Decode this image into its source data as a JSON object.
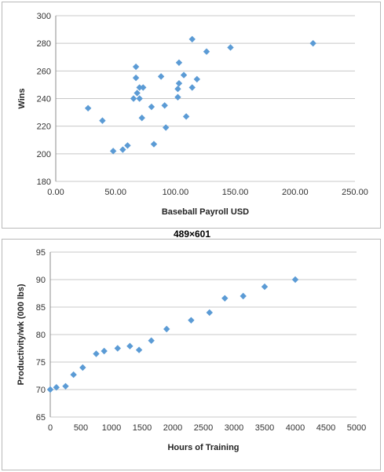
{
  "chart_data": [
    {
      "type": "scatter",
      "title": "",
      "xlabel": "Baseball Payroll USD",
      "ylabel": "Wins",
      "xlim": [
        0,
        250
      ],
      "ylim": [
        180,
        300
      ],
      "x_ticks": [
        "0.00",
        "50.00",
        "100.00",
        "150.00",
        "200.00",
        "250.00"
      ],
      "y_ticks": [
        "180",
        "200",
        "220",
        "240",
        "260",
        "280",
        "300"
      ],
      "grid": true,
      "color": "#5b9bd5",
      "points": [
        [
          27,
          233
        ],
        [
          39,
          224
        ],
        [
          48,
          202
        ],
        [
          56,
          203
        ],
        [
          60,
          206
        ],
        [
          65,
          240
        ],
        [
          67,
          263
        ],
        [
          67,
          255
        ],
        [
          68,
          244
        ],
        [
          70,
          248
        ],
        [
          70,
          240
        ],
        [
          72,
          226
        ],
        [
          73,
          248
        ],
        [
          80,
          234
        ],
        [
          82,
          207
        ],
        [
          88,
          256
        ],
        [
          91,
          235
        ],
        [
          92,
          219
        ],
        [
          102,
          247
        ],
        [
          102,
          241
        ],
        [
          103,
          266
        ],
        [
          103,
          251
        ],
        [
          107,
          257
        ],
        [
          109,
          227
        ],
        [
          114,
          283
        ],
        [
          114,
          248
        ],
        [
          118,
          254
        ],
        [
          126,
          274
        ],
        [
          146,
          277
        ],
        [
          215,
          280
        ]
      ]
    },
    {
      "type": "scatter",
      "title": "",
      "xlabel": "Hours of Training",
      "ylabel": "Productivity/wk (000 lbs)",
      "xlim": [
        0,
        5000
      ],
      "ylim": [
        65,
        95
      ],
      "x_ticks": [
        "0",
        "500",
        "1000",
        "1500",
        "2000",
        "2500",
        "3000",
        "3500",
        "4000",
        "4500",
        "5000"
      ],
      "y_ticks": [
        "65",
        "70",
        "75",
        "80",
        "85",
        "90",
        "95"
      ],
      "grid": true,
      "color": "#5b9bd5",
      "points": [
        [
          0,
          70
        ],
        [
          100,
          70.4
        ],
        [
          250,
          70.6
        ],
        [
          380,
          72.7
        ],
        [
          530,
          74
        ],
        [
          750,
          76.5
        ],
        [
          880,
          77
        ],
        [
          1100,
          77.5
        ],
        [
          1300,
          77.9
        ],
        [
          1450,
          77.2
        ],
        [
          1650,
          78.9
        ],
        [
          1900,
          81
        ],
        [
          2300,
          82.6
        ],
        [
          2600,
          84
        ],
        [
          2850,
          86.6
        ],
        [
          3150,
          87
        ],
        [
          3500,
          88.7
        ],
        [
          4000,
          90
        ]
      ]
    }
  ],
  "overlay_label": "489×601"
}
